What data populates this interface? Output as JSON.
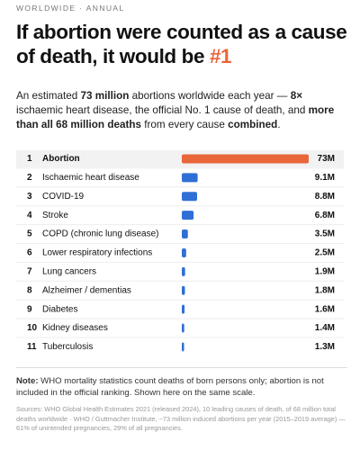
{
  "kicker": "WORLDWIDE · ANNUAL",
  "title": [
    "If abortion were counted as a cause of death, it would be ",
    "#1"
  ],
  "subtitle": [
    "An estimated ",
    "73 million",
    " abortions worldwide each year — ",
    "8×",
    " ischaemic heart disease, the official No. 1 cause of death, and ",
    "more than all 68 million deaths",
    " from every cause ",
    "combined",
    "."
  ],
  "chart_data": {
    "type": "bar",
    "orientation": "horizontal",
    "ranks": [
      1,
      2,
      3,
      4,
      5,
      6,
      7,
      8,
      9,
      10,
      11
    ],
    "categories": [
      "Abortion",
      "Ischaemic heart disease",
      "COVID-19",
      "Stroke",
      "COPD (chronic lung disease)",
      "Lower respiratory infections",
      "Lung cancers",
      "Alzheimer / dementias",
      "Diabetes",
      "Kidney diseases",
      "Tuberculosis"
    ],
    "values": [
      73,
      9.1,
      8.8,
      6.8,
      3.5,
      2.5,
      1.9,
      1.8,
      1.6,
      1.4,
      1.3
    ],
    "value_labels": [
      "73M",
      "9.1M",
      "8.8M",
      "6.8M",
      "3.5M",
      "2.5M",
      "1.9M",
      "1.8M",
      "1.6M",
      "1.4M",
      "1.3M"
    ],
    "colors": [
      "#e8663a",
      "#2f6fd6",
      "#2f6fd6",
      "#2f6fd6",
      "#2f6fd6",
      "#2f6fd6",
      "#2f6fd6",
      "#2f6fd6",
      "#2f6fd6",
      "#2f6fd6",
      "#2f6fd6"
    ],
    "highlight_index": 0,
    "xlim": [
      0,
      73
    ]
  },
  "note": [
    "Note:",
    " WHO mortality statistics count deaths of born persons only; abortion is not included in the official ranking. Shown here on the same scale."
  ],
  "sources": "Sources: WHO Global Health Estimates 2021 (released 2024), 10 leading causes of death, of 68 million total deaths worldwide · WHO / Guttmacher Institute, ~73 million induced abortions per year (2015–2019 average) — 61% of unintended pregnancies, 29% of all pregnancies."
}
